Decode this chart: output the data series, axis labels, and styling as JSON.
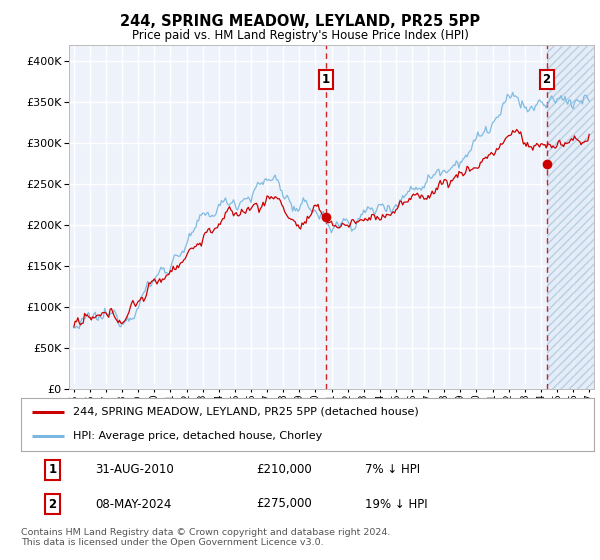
{
  "title": "244, SPRING MEADOW, LEYLAND, PR25 5PP",
  "subtitle": "Price paid vs. HM Land Registry's House Price Index (HPI)",
  "legend_line1": "244, SPRING MEADOW, LEYLAND, PR25 5PP (detached house)",
  "legend_line2": "HPI: Average price, detached house, Chorley",
  "annotation1_date": "31-AUG-2010",
  "annotation1_price": "£210,000",
  "annotation1_pct": "7% ↓ HPI",
  "annotation2_date": "08-MAY-2024",
  "annotation2_price": "£275,000",
  "annotation2_pct": "19% ↓ HPI",
  "footnote": "Contains HM Land Registry data © Crown copyright and database right 2024.\nThis data is licensed under the Open Government Licence v3.0.",
  "hpi_color": "#7ab8e0",
  "price_color": "#cc0000",
  "background_color": "#ffffff",
  "plot_bg_color": "#eef2fa",
  "grid_color": "#ffffff",
  "ylim": [
    0,
    420000
  ],
  "yticks": [
    0,
    50000,
    100000,
    150000,
    200000,
    250000,
    300000,
    350000,
    400000
  ],
  "annotation1_year": 2010.67,
  "annotation2_year": 2024.36,
  "sale1_price": 210000,
  "sale2_price": 275000
}
